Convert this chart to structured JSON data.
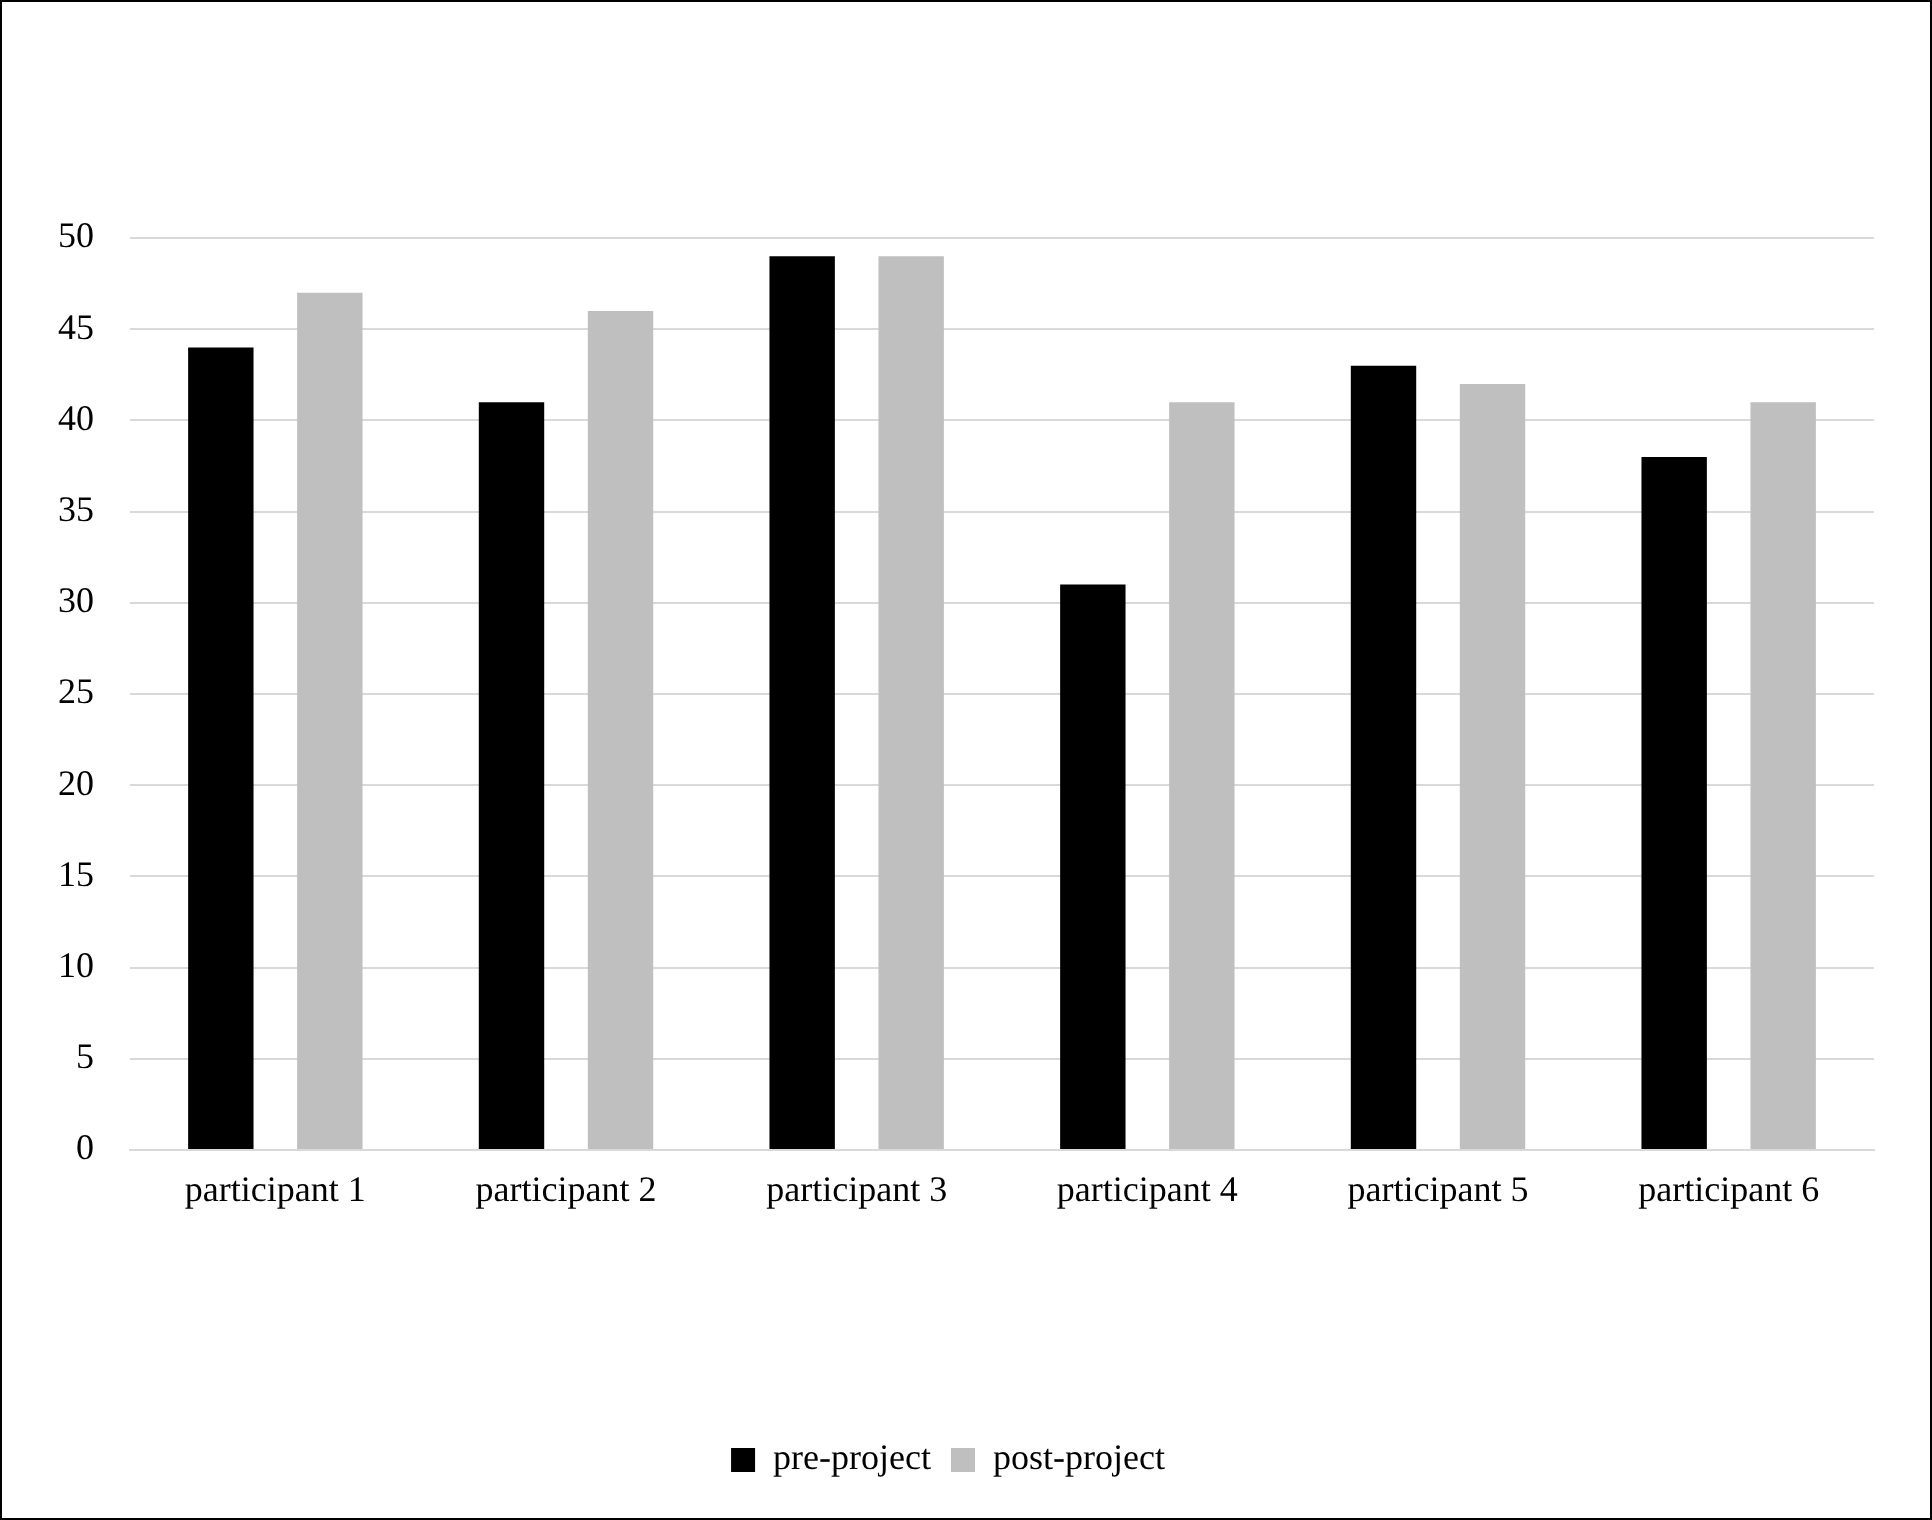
{
  "chart_data": {
    "type": "bar",
    "categories": [
      "participant 1",
      "participant 2",
      "participant 3",
      "participant 4",
      "participant 5",
      "participant 6"
    ],
    "series": [
      {
        "name": "pre-project",
        "color": "#000000",
        "values": [
          44,
          41,
          49,
          31,
          43,
          38
        ]
      },
      {
        "name": "post-project",
        "color": "#bfbfbf",
        "values": [
          47,
          46,
          49,
          41,
          42,
          41
        ]
      }
    ],
    "ylim": [
      0,
      50
    ],
    "yticks": [
      0,
      5,
      10,
      15,
      20,
      25,
      30,
      35,
      40,
      45,
      50
    ],
    "grid": "y",
    "legend": "bottom"
  }
}
